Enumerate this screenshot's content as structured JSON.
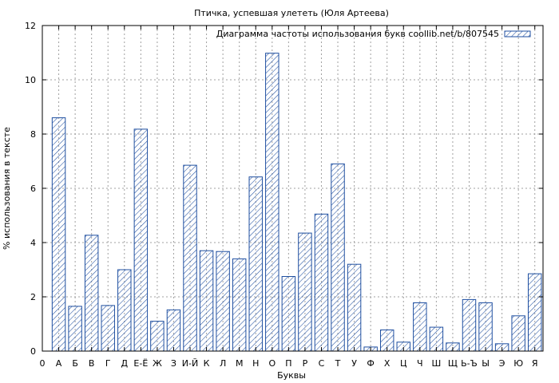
{
  "chart_data": {
    "type": "bar",
    "title": "Птичка, успевшая улететь (Юля Артеева)",
    "xlabel": "Буквы",
    "ylabel": "% использования в тексте",
    "ylim": [
      0,
      12
    ],
    "yticks": [
      0,
      2,
      4,
      6,
      8,
      10,
      12
    ],
    "grid": true,
    "legend_position": "top-right",
    "x_axis_start_label": "0",
    "categories": [
      "А",
      "Б",
      "В",
      "Г",
      "Д",
      "Е-Ё",
      "Ж",
      "З",
      "И-Й",
      "К",
      "Л",
      "М",
      "Н",
      "О",
      "П",
      "Р",
      "С",
      "Т",
      "У",
      "Ф",
      "Х",
      "Ц",
      "Ч",
      "Ш",
      "Щ",
      "Ь-Ъ",
      "Ы",
      "Э",
      "Ю",
      "Я"
    ],
    "series": [
      {
        "name": "Диаграмма частоты использования букв coollib.net/b/807545",
        "color": "#1f4fa0",
        "values": [
          8.6,
          1.65,
          4.27,
          1.68,
          3.0,
          8.18,
          1.1,
          1.52,
          6.85,
          3.7,
          3.67,
          3.4,
          6.42,
          10.98,
          2.75,
          4.35,
          5.05,
          6.9,
          3.2,
          0.15,
          0.78,
          0.33,
          1.78,
          0.88,
          0.3,
          1.9,
          1.78,
          0.27,
          1.3,
          2.85
        ]
      }
    ]
  }
}
